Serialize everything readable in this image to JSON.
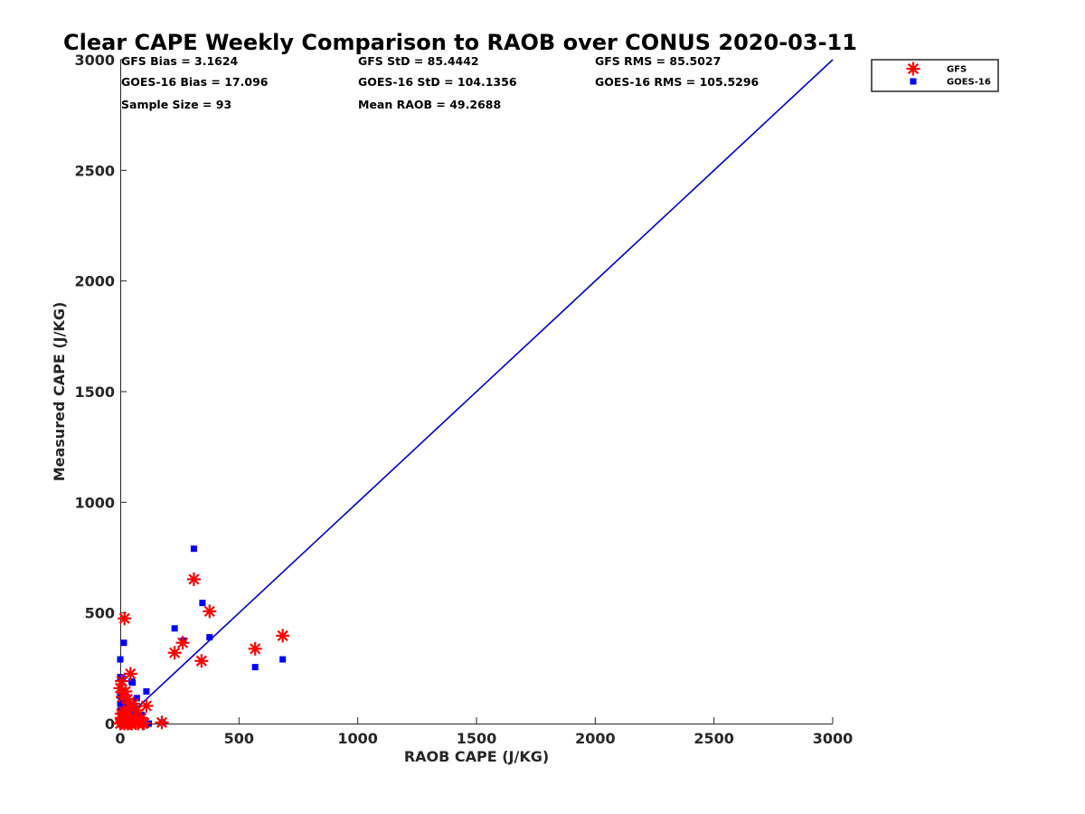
{
  "chart_data": {
    "type": "scatter",
    "title": "Clear CAPE Weekly Comparison to RAOB over CONUS 2020-03-11",
    "xlabel": "RAOB CAPE (J/KG)",
    "ylabel": "Measured CAPE (J/KG)",
    "xlim": [
      0,
      3000
    ],
    "ylim": [
      0,
      3000
    ],
    "xticks": [
      "0",
      "500",
      "1000",
      "1500",
      "2000",
      "2500",
      "3000"
    ],
    "yticks": [
      "0",
      "500",
      "1000",
      "1500",
      "2000",
      "2500",
      "3000"
    ],
    "grid": false,
    "legend_position": "top-right",
    "stats": [
      [
        "GFS Bias = 3.1624",
        "GFS StD = 85.4442",
        "GFS RMS = 85.5027"
      ],
      [
        "GOES-16 Bias = 17.096",
        "GOES-16 StD = 104.1356",
        "GOES-16 RMS = 105.5296"
      ],
      [
        "Sample Size = 93",
        "Mean RAOB = 49.2688"
      ]
    ],
    "reference_line": {
      "color": "#0000cc",
      "x": [
        0,
        3000
      ],
      "y": [
        0,
        3000
      ]
    },
    "series": [
      {
        "name": "GFS",
        "marker": "asterisk",
        "color": "#ff0000",
        "points": [
          [
            18,
            475
          ],
          [
            310,
            652
          ],
          [
            376,
            507
          ],
          [
            684,
            397
          ],
          [
            568,
            338
          ],
          [
            229,
            320
          ],
          [
            263,
            365
          ],
          [
            342,
            283
          ],
          [
            43,
            225
          ],
          [
            6,
            192
          ],
          [
            0,
            160
          ],
          [
            22,
            145
          ],
          [
            10,
            120
          ],
          [
            30,
            110
          ],
          [
            55,
            90
          ],
          [
            110,
            80
          ],
          [
            38,
            75
          ],
          [
            70,
            60
          ],
          [
            15,
            55
          ],
          [
            5,
            45
          ],
          [
            25,
            40
          ],
          [
            45,
            35
          ],
          [
            60,
            30
          ],
          [
            88,
            25
          ],
          [
            20,
            20
          ],
          [
            35,
            15
          ],
          [
            50,
            12
          ],
          [
            8,
            10
          ],
          [
            12,
            5
          ],
          [
            28,
            5
          ],
          [
            40,
            3
          ],
          [
            65,
            2
          ],
          [
            100,
            2
          ],
          [
            175,
            5
          ],
          [
            3,
            2
          ],
          [
            18,
            0
          ],
          [
            0,
            0
          ],
          [
            32,
            0
          ],
          [
            48,
            0
          ],
          [
            75,
            0
          ],
          [
            95,
            0
          ],
          [
            5,
            25
          ]
        ]
      },
      {
        "name": "GOES-16",
        "marker": "square",
        "color": "#0000ff",
        "points": [
          [
            310,
            790
          ],
          [
            346,
            545
          ],
          [
            229,
            430
          ],
          [
            376,
            390
          ],
          [
            266,
            375
          ],
          [
            15,
            365
          ],
          [
            684,
            290
          ],
          [
            0,
            290
          ],
          [
            568,
            255
          ],
          [
            0,
            210
          ],
          [
            10,
            205
          ],
          [
            48,
            190
          ],
          [
            52,
            185
          ],
          [
            110,
            145
          ],
          [
            0,
            125
          ],
          [
            5,
            115
          ],
          [
            70,
            115
          ],
          [
            8,
            105
          ],
          [
            20,
            100
          ],
          [
            32,
            95
          ],
          [
            0,
            90
          ],
          [
            25,
            80
          ],
          [
            12,
            70
          ],
          [
            42,
            65
          ],
          [
            2,
            60
          ],
          [
            18,
            55
          ],
          [
            55,
            50
          ],
          [
            65,
            45
          ],
          [
            35,
            40
          ],
          [
            90,
            38
          ],
          [
            28,
            35
          ],
          [
            80,
            32
          ],
          [
            40,
            25
          ],
          [
            60,
            20
          ],
          [
            15,
            15
          ],
          [
            50,
            12
          ],
          [
            100,
            10
          ],
          [
            5,
            8
          ],
          [
            22,
            5
          ],
          [
            38,
            3
          ],
          [
            70,
            2
          ],
          [
            178,
            5
          ],
          [
            2,
            0
          ],
          [
            45,
            0
          ],
          [
            120,
            0
          ]
        ]
      }
    ]
  }
}
